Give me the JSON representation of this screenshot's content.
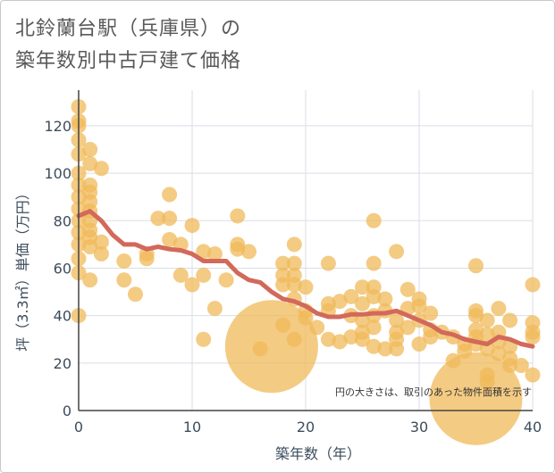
{
  "title_lines": [
    "北鈴蘭台駅（兵庫県）の",
    "築年数別中古戸建て価格"
  ],
  "note": "円の大きさは、取引のあった物件面積を示す",
  "colors": {
    "bubble": "#f0b95a",
    "bubble_opacity": 0.75,
    "line": "#d2695a",
    "grid": "#d9dde5",
    "axis": "#444444"
  },
  "chart_data": {
    "type": "scatter",
    "xlabel": "築年数（年）",
    "ylabel": "坪（3.3㎡）単価（万円）",
    "xlim": [
      0,
      40
    ],
    "ylim": [
      0,
      135
    ],
    "xticks": [
      "0",
      "10",
      "20",
      "30",
      "40"
    ],
    "yticks": [
      "0",
      "20",
      "40",
      "60",
      "80",
      "100",
      "120"
    ],
    "xtick_values": [
      0,
      10,
      20,
      30,
      40
    ],
    "ytick_values": [
      0,
      20,
      40,
      60,
      80,
      100,
      120
    ],
    "grid": true,
    "points": [
      {
        "x": 0,
        "y": 128,
        "s": 1
      },
      {
        "x": 0,
        "y": 122,
        "s": 1
      },
      {
        "x": 0,
        "y": 120,
        "s": 1
      },
      {
        "x": 0,
        "y": 114,
        "s": 1
      },
      {
        "x": 0,
        "y": 108,
        "s": 1
      },
      {
        "x": 0,
        "y": 100,
        "s": 1
      },
      {
        "x": 0,
        "y": 95,
        "s": 1
      },
      {
        "x": 0,
        "y": 90,
        "s": 1
      },
      {
        "x": 0,
        "y": 85,
        "s": 1
      },
      {
        "x": 0,
        "y": 80,
        "s": 1
      },
      {
        "x": 0,
        "y": 75,
        "s": 1
      },
      {
        "x": 0,
        "y": 70,
        "s": 1
      },
      {
        "x": 0,
        "y": 64,
        "s": 1
      },
      {
        "x": 0,
        "y": 58,
        "s": 1
      },
      {
        "x": 0,
        "y": 40,
        "s": 1
      },
      {
        "x": 1,
        "y": 110,
        "s": 1
      },
      {
        "x": 1,
        "y": 104,
        "s": 1
      },
      {
        "x": 1,
        "y": 95,
        "s": 1
      },
      {
        "x": 1,
        "y": 92,
        "s": 1
      },
      {
        "x": 1,
        "y": 88,
        "s": 1
      },
      {
        "x": 1,
        "y": 84,
        "s": 1
      },
      {
        "x": 1,
        "y": 80,
        "s": 1
      },
      {
        "x": 1,
        "y": 76,
        "s": 1
      },
      {
        "x": 1,
        "y": 73,
        "s": 1
      },
      {
        "x": 1,
        "y": 69,
        "s": 1
      },
      {
        "x": 1,
        "y": 55,
        "s": 1
      },
      {
        "x": 2,
        "y": 102,
        "s": 1
      },
      {
        "x": 2,
        "y": 71,
        "s": 1
      },
      {
        "x": 2,
        "y": 66,
        "s": 1
      },
      {
        "x": 4,
        "y": 63,
        "s": 1
      },
      {
        "x": 4,
        "y": 55,
        "s": 1
      },
      {
        "x": 5,
        "y": 49,
        "s": 1
      },
      {
        "x": 6,
        "y": 66,
        "s": 1
      },
      {
        "x": 6,
        "y": 64,
        "s": 1
      },
      {
        "x": 7,
        "y": 81,
        "s": 1
      },
      {
        "x": 8,
        "y": 91,
        "s": 1
      },
      {
        "x": 8,
        "y": 81,
        "s": 1
      },
      {
        "x": 8,
        "y": 72,
        "s": 1
      },
      {
        "x": 9,
        "y": 70,
        "s": 1
      },
      {
        "x": 9,
        "y": 57,
        "s": 1
      },
      {
        "x": 10,
        "y": 78,
        "s": 1
      },
      {
        "x": 10,
        "y": 53,
        "s": 1
      },
      {
        "x": 11,
        "y": 67,
        "s": 1
      },
      {
        "x": 11,
        "y": 57,
        "s": 1
      },
      {
        "x": 11,
        "y": 30,
        "s": 1
      },
      {
        "x": 12,
        "y": 66,
        "s": 1
      },
      {
        "x": 12,
        "y": 43,
        "s": 1
      },
      {
        "x": 13,
        "y": 55,
        "s": 1
      },
      {
        "x": 14,
        "y": 82,
        "s": 1
      },
      {
        "x": 14,
        "y": 70,
        "s": 1
      },
      {
        "x": 14,
        "y": 68,
        "s": 1
      },
      {
        "x": 15,
        "y": 67,
        "s": 1
      },
      {
        "x": 16,
        "y": 26,
        "s": 1
      },
      {
        "x": 17,
        "y": 27,
        "s": 8
      },
      {
        "x": 18,
        "y": 62,
        "s": 1
      },
      {
        "x": 18,
        "y": 57,
        "s": 1
      },
      {
        "x": 18,
        "y": 53,
        "s": 1
      },
      {
        "x": 18,
        "y": 36,
        "s": 1
      },
      {
        "x": 19,
        "y": 70,
        "s": 1
      },
      {
        "x": 19,
        "y": 62,
        "s": 1
      },
      {
        "x": 19,
        "y": 57,
        "s": 1
      },
      {
        "x": 19,
        "y": 53,
        "s": 1
      },
      {
        "x": 19,
        "y": 47,
        "s": 1
      },
      {
        "x": 19,
        "y": 30,
        "s": 1
      },
      {
        "x": 20,
        "y": 52,
        "s": 1
      },
      {
        "x": 20,
        "y": 42,
        "s": 1
      },
      {
        "x": 20,
        "y": 39,
        "s": 1
      },
      {
        "x": 21,
        "y": 35,
        "s": 1
      },
      {
        "x": 22,
        "y": 62,
        "s": 1
      },
      {
        "x": 22,
        "y": 45,
        "s": 1
      },
      {
        "x": 22,
        "y": 42,
        "s": 1
      },
      {
        "x": 22,
        "y": 30,
        "s": 1
      },
      {
        "x": 23,
        "y": 46,
        "s": 1
      },
      {
        "x": 23,
        "y": 29,
        "s": 1
      },
      {
        "x": 24,
        "y": 48,
        "s": 1
      },
      {
        "x": 24,
        "y": 40,
        "s": 1
      },
      {
        "x": 24,
        "y": 31,
        "s": 1
      },
      {
        "x": 25,
        "y": 52,
        "s": 1
      },
      {
        "x": 25,
        "y": 45,
        "s": 1
      },
      {
        "x": 25,
        "y": 38,
        "s": 1
      },
      {
        "x": 25,
        "y": 33,
        "s": 1
      },
      {
        "x": 25,
        "y": 30,
        "s": 1
      },
      {
        "x": 26,
        "y": 80,
        "s": 1
      },
      {
        "x": 26,
        "y": 62,
        "s": 1
      },
      {
        "x": 26,
        "y": 52,
        "s": 1
      },
      {
        "x": 26,
        "y": 48,
        "s": 1
      },
      {
        "x": 26,
        "y": 40,
        "s": 1
      },
      {
        "x": 26,
        "y": 35,
        "s": 1
      },
      {
        "x": 26,
        "y": 27,
        "s": 1
      },
      {
        "x": 27,
        "y": 47,
        "s": 1
      },
      {
        "x": 27,
        "y": 42,
        "s": 1
      },
      {
        "x": 27,
        "y": 26,
        "s": 1
      },
      {
        "x": 28,
        "y": 67,
        "s": 1
      },
      {
        "x": 28,
        "y": 38,
        "s": 1
      },
      {
        "x": 28,
        "y": 33,
        "s": 1
      },
      {
        "x": 28,
        "y": 30,
        "s": 1
      },
      {
        "x": 28,
        "y": 26,
        "s": 1
      },
      {
        "x": 29,
        "y": 51,
        "s": 1
      },
      {
        "x": 29,
        "y": 43,
        "s": 1
      },
      {
        "x": 29,
        "y": 35,
        "s": 1
      },
      {
        "x": 30,
        "y": 47,
        "s": 1
      },
      {
        "x": 30,
        "y": 44,
        "s": 1
      },
      {
        "x": 30,
        "y": 38,
        "s": 1
      },
      {
        "x": 30,
        "y": 28,
        "s": 1
      },
      {
        "x": 31,
        "y": 41,
        "s": 1
      },
      {
        "x": 31,
        "y": 34,
        "s": 1
      },
      {
        "x": 31,
        "y": 31,
        "s": 1
      },
      {
        "x": 32,
        "y": 33,
        "s": 1
      },
      {
        "x": 33,
        "y": 31,
        "s": 1
      },
      {
        "x": 33,
        "y": 21,
        "s": 1
      },
      {
        "x": 34,
        "y": 28,
        "s": 1
      },
      {
        "x": 34,
        "y": 25,
        "s": 1
      },
      {
        "x": 35,
        "y": 61,
        "s": 1
      },
      {
        "x": 35,
        "y": 42,
        "s": 1
      },
      {
        "x": 35,
        "y": 40,
        "s": 1
      },
      {
        "x": 35,
        "y": 34,
        "s": 1
      },
      {
        "x": 35,
        "y": 31,
        "s": 1
      },
      {
        "x": 35,
        "y": 28,
        "s": 1
      },
      {
        "x": 35,
        "y": 5,
        "s": 8
      },
      {
        "x": 36,
        "y": 38,
        "s": 1
      },
      {
        "x": 36,
        "y": 32,
        "s": 1
      },
      {
        "x": 36,
        "y": 26,
        "s": 1
      },
      {
        "x": 36,
        "y": 15,
        "s": 1
      },
      {
        "x": 36,
        "y": 12,
        "s": 1
      },
      {
        "x": 37,
        "y": 43,
        "s": 1
      },
      {
        "x": 37,
        "y": 33,
        "s": 1
      },
      {
        "x": 37,
        "y": 29,
        "s": 1
      },
      {
        "x": 37,
        "y": 24,
        "s": 1
      },
      {
        "x": 38,
        "y": 38,
        "s": 1
      },
      {
        "x": 38,
        "y": 27,
        "s": 1
      },
      {
        "x": 38,
        "y": 22,
        "s": 1
      },
      {
        "x": 38,
        "y": 19,
        "s": 1
      },
      {
        "x": 39,
        "y": 19,
        "s": 1
      },
      {
        "x": 40,
        "y": 53,
        "s": 1
      },
      {
        "x": 40,
        "y": 37,
        "s": 1
      },
      {
        "x": 40,
        "y": 33,
        "s": 1
      },
      {
        "x": 40,
        "y": 31,
        "s": 1
      },
      {
        "x": 40,
        "y": 15,
        "s": 1
      }
    ],
    "trend": {
      "x": [
        0,
        1,
        2,
        3,
        4,
        5,
        6,
        7,
        8,
        9,
        10,
        11,
        12,
        13,
        14,
        15,
        16,
        17,
        18,
        19,
        20,
        21,
        22,
        23,
        24,
        25,
        26,
        27,
        28,
        29,
        30,
        31,
        32,
        33,
        34,
        35,
        36,
        37,
        38,
        39,
        40
      ],
      "y": [
        82,
        84,
        80,
        74,
        70,
        70,
        68,
        69,
        68,
        67.5,
        66,
        63,
        63,
        63,
        58,
        55,
        54,
        50,
        47,
        46,
        44,
        41,
        39.5,
        39.5,
        40.5,
        40.5,
        41,
        41,
        42,
        40,
        38,
        36,
        33,
        32,
        30,
        29,
        28,
        31,
        30,
        28,
        27
      ]
    }
  }
}
